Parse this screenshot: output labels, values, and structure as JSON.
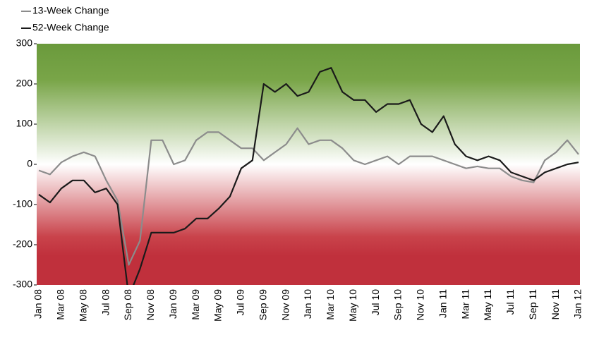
{
  "chart_data": {
    "type": "line",
    "categories": [
      "Jan 08",
      null,
      "Mar 08",
      null,
      "May 08",
      null,
      "Jul 08",
      null,
      "Sep 08",
      null,
      "Nov 08",
      null,
      "Jan 09",
      null,
      "Mar 09",
      null,
      "May 09",
      null,
      "Jul 09",
      null,
      "Sep 09",
      null,
      "Nov 09",
      null,
      "Jan 10",
      null,
      "Mar 10",
      null,
      "May 10",
      null,
      "Jul 10",
      null,
      "Sep 10",
      null,
      "Nov 10",
      null,
      "Jan 11",
      null,
      "Mar 11",
      null,
      "May 11",
      null,
      "Jul 11",
      null,
      "Sep 11",
      null,
      "Nov 11",
      null,
      "Jan 12"
    ],
    "series": [
      {
        "name": "13-Week Change",
        "color": "#8c8c8c",
        "values": [
          -15,
          -25,
          5,
          20,
          30,
          20,
          -40,
          -90,
          -250,
          -190,
          60,
          60,
          0,
          10,
          60,
          80,
          80,
          60,
          40,
          40,
          10,
          30,
          50,
          90,
          50,
          60,
          60,
          40,
          10,
          0,
          10,
          20,
          0,
          20,
          20,
          20,
          10,
          0,
          -10,
          -5,
          -10,
          -10,
          -30,
          -40,
          -45,
          10,
          30,
          60,
          25
        ]
      },
      {
        "name": "52-Week Change",
        "color": "#1a1a1a",
        "values": [
          -75,
          -95,
          -60,
          -40,
          -40,
          -70,
          -60,
          -100,
          -330,
          -260,
          -170,
          -170,
          -170,
          -160,
          -135,
          -135,
          -110,
          -80,
          -10,
          10,
          200,
          180,
          200,
          170,
          180,
          230,
          240,
          180,
          160,
          160,
          130,
          150,
          150,
          160,
          100,
          80,
          120,
          50,
          20,
          10,
          20,
          10,
          -20,
          -30,
          -40,
          -20,
          -10,
          0,
          5
        ]
      }
    ],
    "ylim": [
      -300,
      300
    ],
    "yticks": [
      -300,
      -200,
      -100,
      0,
      100,
      200,
      300
    ],
    "legend": "top-left"
  }
}
